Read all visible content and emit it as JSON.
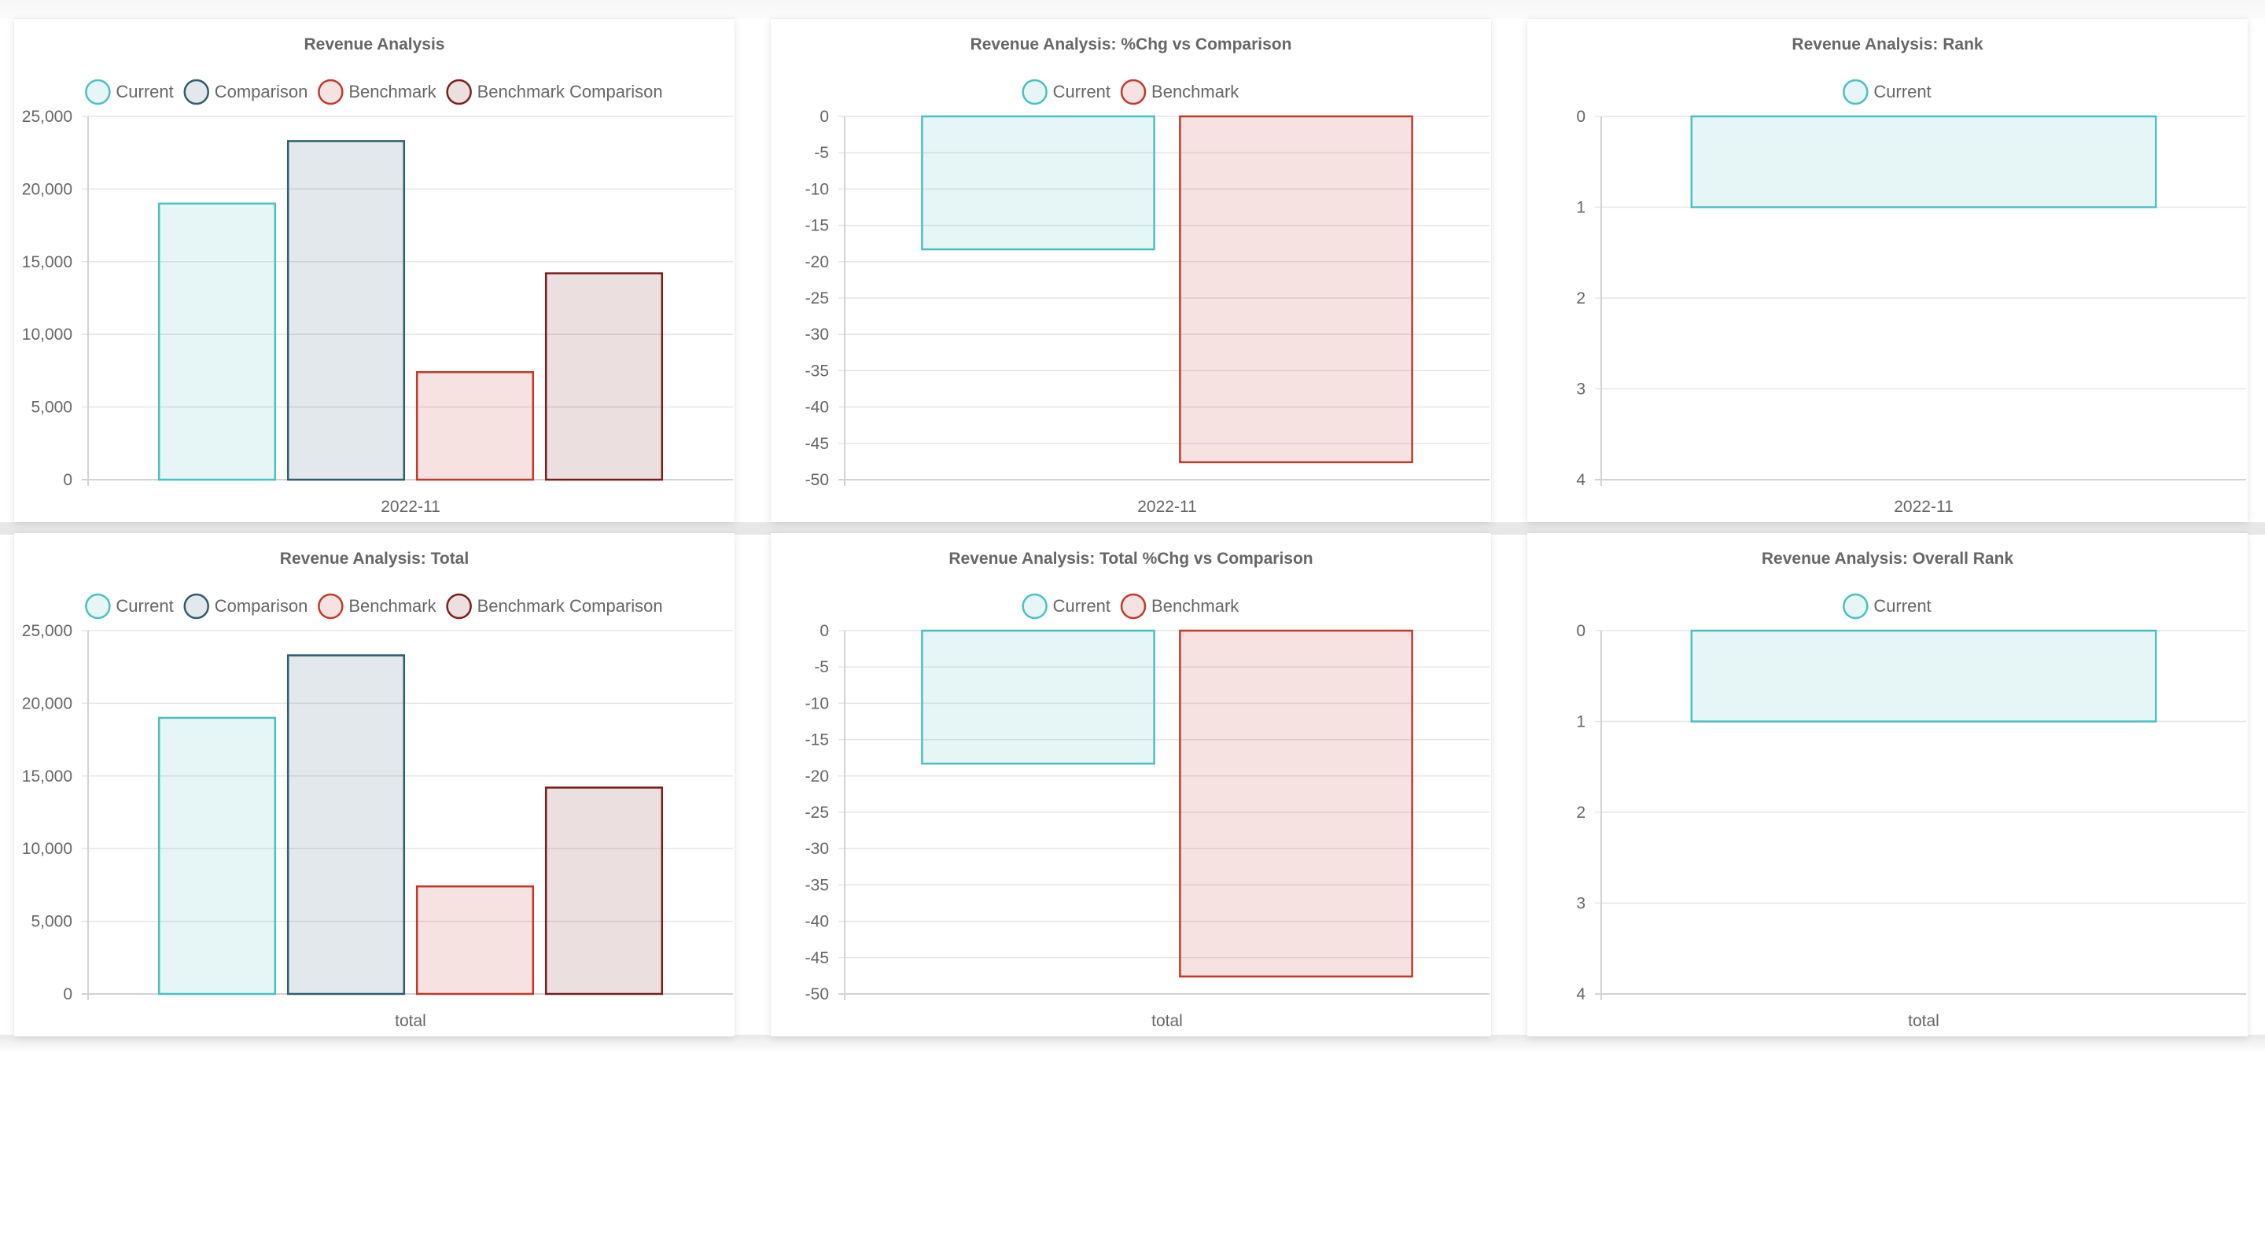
{
  "colors": {
    "current": {
      "border": "#4bc0c0",
      "fill": "rgba(75,192,192,0.14)"
    },
    "comparison": {
      "border": "#2f5d6e",
      "fill": "rgba(47,93,110,0.14)"
    },
    "benchmark": {
      "border": "#c0392b",
      "fill": "rgba(192,57,43,0.14)"
    },
    "benchmark_comparison": {
      "border": "#7b1d1d",
      "fill": "rgba(123,29,29,0.14)"
    },
    "grid": "#e5e5e5",
    "text": "#666666"
  },
  "chart_data": [
    {
      "id": "revenue-analysis",
      "type": "bar",
      "title": "Revenue Analysis",
      "categories": [
        "2022-11"
      ],
      "series": [
        {
          "name": "Current",
          "key": "current",
          "values": [
            19000
          ]
        },
        {
          "name": "Comparison",
          "key": "comparison",
          "values": [
            23300
          ]
        },
        {
          "name": "Benchmark",
          "key": "benchmark",
          "values": [
            7400
          ]
        },
        {
          "name": "Benchmark Comparison",
          "key": "benchmark_comparison",
          "values": [
            14200
          ]
        }
      ],
      "ylim": [
        0,
        25000
      ],
      "yticks": [
        "25,000",
        "20,000",
        "15,000",
        "10,000",
        "5,000",
        "0"
      ],
      "reverse": false,
      "grid": true,
      "legend": "top"
    },
    {
      "id": "pct-chg",
      "type": "bar",
      "title": "Revenue Analysis: %Chg vs Comparison",
      "categories": [
        "2022-11"
      ],
      "series": [
        {
          "name": "Current",
          "key": "current",
          "values": [
            -18.3
          ]
        },
        {
          "name": "Benchmark",
          "key": "benchmark",
          "values": [
            -47.6
          ]
        }
      ],
      "ylim": [
        -50,
        0
      ],
      "yticks": [
        "0",
        "-5",
        "-10",
        "-15",
        "-20",
        "-25",
        "-30",
        "-35",
        "-40",
        "-45",
        "-50"
      ],
      "reverse": false,
      "grid": true,
      "legend": "top"
    },
    {
      "id": "rank",
      "type": "bar",
      "title": "Revenue Analysis: Rank",
      "categories": [
        "2022-11"
      ],
      "series": [
        {
          "name": "Current",
          "key": "current",
          "values": [
            1
          ]
        }
      ],
      "ylim": [
        0,
        4
      ],
      "yticks": [
        "0",
        "1",
        "2",
        "3",
        "4"
      ],
      "reverse": true,
      "grid": true,
      "legend": "top"
    },
    {
      "id": "total",
      "type": "bar",
      "title": "Revenue Analysis: Total",
      "categories": [
        "total"
      ],
      "series": [
        {
          "name": "Current",
          "key": "current",
          "values": [
            19000
          ]
        },
        {
          "name": "Comparison",
          "key": "comparison",
          "values": [
            23300
          ]
        },
        {
          "name": "Benchmark",
          "key": "benchmark",
          "values": [
            7400
          ]
        },
        {
          "name": "Benchmark Comparison",
          "key": "benchmark_comparison",
          "values": [
            14200
          ]
        }
      ],
      "ylim": [
        0,
        25000
      ],
      "yticks": [
        "25,000",
        "20,000",
        "15,000",
        "10,000",
        "5,000",
        "0"
      ],
      "reverse": false,
      "grid": true,
      "legend": "top"
    },
    {
      "id": "total-pct-chg",
      "type": "bar",
      "title": "Revenue Analysis: Total %Chg vs Comparison",
      "categories": [
        "total"
      ],
      "series": [
        {
          "name": "Current",
          "key": "current",
          "values": [
            -18.3
          ]
        },
        {
          "name": "Benchmark",
          "key": "benchmark",
          "values": [
            -47.6
          ]
        }
      ],
      "ylim": [
        -50,
        0
      ],
      "yticks": [
        "0",
        "-5",
        "-10",
        "-15",
        "-20",
        "-25",
        "-30",
        "-35",
        "-40",
        "-45",
        "-50"
      ],
      "reverse": false,
      "grid": true,
      "legend": "top"
    },
    {
      "id": "overall-rank",
      "type": "bar",
      "title": "Revenue Analysis: Overall Rank",
      "categories": [
        "total"
      ],
      "series": [
        {
          "name": "Current",
          "key": "current",
          "values": [
            1
          ]
        }
      ],
      "ylim": [
        0,
        4
      ],
      "yticks": [
        "0",
        "1",
        "2",
        "3",
        "4"
      ],
      "reverse": true,
      "grid": true,
      "legend": "top"
    }
  ]
}
